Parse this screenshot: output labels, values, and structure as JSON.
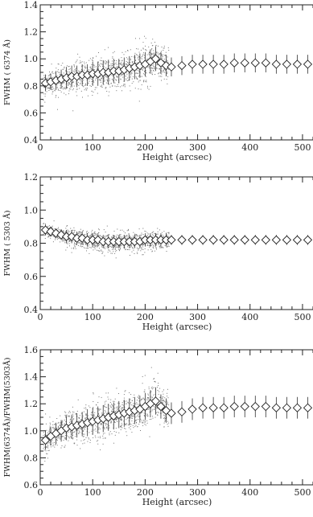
{
  "chart_data": [
    {
      "type": "scatter",
      "xlabel": "Height (arcsec)",
      "ylabel": "FWHM ( 6374 Å)",
      "xlim": [
        0,
        520
      ],
      "ylim": [
        0.4,
        1.4
      ],
      "xticks": [
        0,
        100,
        200,
        300,
        400,
        500
      ],
      "xtick_labels": [
        "0",
        "100",
        "200",
        "300",
        "400",
        "500"
      ],
      "yticks": [
        0.4,
        0.6,
        0.8,
        1.0,
        1.2,
        1.4
      ],
      "ytick_labels": [
        "0.4",
        "0.6",
        "0.8",
        "1.0",
        "1.2",
        "1.4"
      ],
      "series": [
        {
          "x": [
            10,
            20,
            30,
            40,
            50,
            60,
            70,
            80,
            90,
            100,
            110,
            120,
            130,
            140,
            150,
            160,
            170,
            180,
            190,
            200,
            210,
            220,
            230,
            240,
            250,
            270,
            290,
            310,
            330,
            350,
            370,
            390,
            410,
            430,
            450,
            470,
            490,
            510
          ],
          "y": [
            0.82,
            0.83,
            0.84,
            0.85,
            0.86,
            0.87,
            0.87,
            0.88,
            0.88,
            0.89,
            0.89,
            0.9,
            0.9,
            0.91,
            0.91,
            0.92,
            0.93,
            0.94,
            0.95,
            0.96,
            0.98,
            1.0,
            0.97,
            0.95,
            0.94,
            0.95,
            0.96,
            0.96,
            0.96,
            0.96,
            0.97,
            0.97,
            0.97,
            0.97,
            0.96,
            0.96,
            0.96,
            0.96
          ],
          "err": [
            0.06,
            0.06,
            0.07,
            0.07,
            0.08,
            0.08,
            0.08,
            0.08,
            0.08,
            0.09,
            0.09,
            0.09,
            0.09,
            0.09,
            0.09,
            0.09,
            0.09,
            0.09,
            0.09,
            0.09,
            0.09,
            0.09,
            0.08,
            0.08,
            0.07,
            0.07,
            0.07,
            0.07,
            0.07,
            0.07,
            0.07,
            0.07,
            0.07,
            0.07,
            0.07,
            0.07,
            0.07,
            0.07
          ]
        }
      ]
    },
    {
      "type": "scatter",
      "xlabel": "Height (arcsec)",
      "ylabel": "FWHM ( 5303 Å)",
      "xlim": [
        0,
        520
      ],
      "ylim": [
        0.4,
        1.2
      ],
      "xticks": [
        0,
        100,
        200,
        300,
        400,
        500
      ],
      "xtick_labels": [
        "0",
        "100",
        "200",
        "300",
        "400",
        "500"
      ],
      "yticks": [
        0.4,
        0.6,
        0.8,
        1.0,
        1.2
      ],
      "ytick_labels": [
        "0.4",
        "0.6",
        "0.8",
        "1.0",
        "1.2"
      ],
      "series": [
        {
          "x": [
            10,
            20,
            30,
            40,
            50,
            60,
            70,
            80,
            90,
            100,
            110,
            120,
            130,
            140,
            150,
            160,
            170,
            180,
            190,
            200,
            210,
            220,
            230,
            240,
            250,
            270,
            290,
            310,
            330,
            350,
            370,
            390,
            410,
            430,
            450,
            470,
            490,
            510
          ],
          "y": [
            0.88,
            0.87,
            0.86,
            0.85,
            0.84,
            0.84,
            0.83,
            0.83,
            0.82,
            0.82,
            0.82,
            0.81,
            0.81,
            0.81,
            0.81,
            0.81,
            0.81,
            0.81,
            0.81,
            0.82,
            0.82,
            0.82,
            0.82,
            0.82,
            0.82,
            0.82,
            0.82,
            0.82,
            0.82,
            0.82,
            0.82,
            0.82,
            0.82,
            0.82,
            0.82,
            0.82,
            0.82,
            0.82
          ],
          "err": [
            0.03,
            0.03,
            0.03,
            0.03,
            0.04,
            0.04,
            0.04,
            0.04,
            0.04,
            0.04,
            0.04,
            0.04,
            0.04,
            0.04,
            0.04,
            0.04,
            0.04,
            0.04,
            0.04,
            0.04,
            0.04,
            0.04,
            0.04,
            0.04,
            0.03,
            0.03,
            0.03,
            0.03,
            0.03,
            0.03,
            0.03,
            0.03,
            0.03,
            0.03,
            0.03,
            0.03,
            0.03,
            0.03
          ]
        }
      ]
    },
    {
      "type": "scatter",
      "xlabel": "Height (arcsec)",
      "ylabel": "FWHM(6374Å)/FWHM(5303Å)",
      "xlim": [
        0,
        520
      ],
      "ylim": [
        0.6,
        1.6
      ],
      "xticks": [
        0,
        100,
        200,
        300,
        400,
        500
      ],
      "xtick_labels": [
        "0",
        "100",
        "200",
        "300",
        "400",
        "500"
      ],
      "yticks": [
        0.6,
        0.8,
        1.0,
        1.2,
        1.4,
        1.6
      ],
      "ytick_labels": [
        "0.6",
        "0.8",
        "1.0",
        "1.2",
        "1.4",
        "1.6"
      ],
      "series": [
        {
          "x": [
            10,
            20,
            30,
            40,
            50,
            60,
            70,
            80,
            90,
            100,
            110,
            120,
            130,
            140,
            150,
            160,
            170,
            180,
            190,
            200,
            210,
            220,
            230,
            240,
            250,
            270,
            290,
            310,
            330,
            350,
            370,
            390,
            410,
            430,
            450,
            470,
            490,
            510
          ],
          "y": [
            0.93,
            0.96,
            0.98,
            1.0,
            1.02,
            1.03,
            1.04,
            1.05,
            1.06,
            1.07,
            1.08,
            1.09,
            1.1,
            1.11,
            1.12,
            1.13,
            1.14,
            1.15,
            1.16,
            1.18,
            1.2,
            1.22,
            1.18,
            1.15,
            1.13,
            1.14,
            1.16,
            1.17,
            1.17,
            1.17,
            1.18,
            1.18,
            1.18,
            1.18,
            1.17,
            1.17,
            1.17,
            1.17
          ],
          "err": [
            0.07,
            0.07,
            0.08,
            0.08,
            0.09,
            0.09,
            0.09,
            0.09,
            0.1,
            0.1,
            0.1,
            0.1,
            0.1,
            0.1,
            0.1,
            0.1,
            0.1,
            0.1,
            0.1,
            0.1,
            0.1,
            0.1,
            0.09,
            0.09,
            0.08,
            0.08,
            0.08,
            0.08,
            0.08,
            0.08,
            0.08,
            0.08,
            0.08,
            0.08,
            0.08,
            0.08,
            0.08,
            0.08
          ]
        }
      ]
    }
  ]
}
